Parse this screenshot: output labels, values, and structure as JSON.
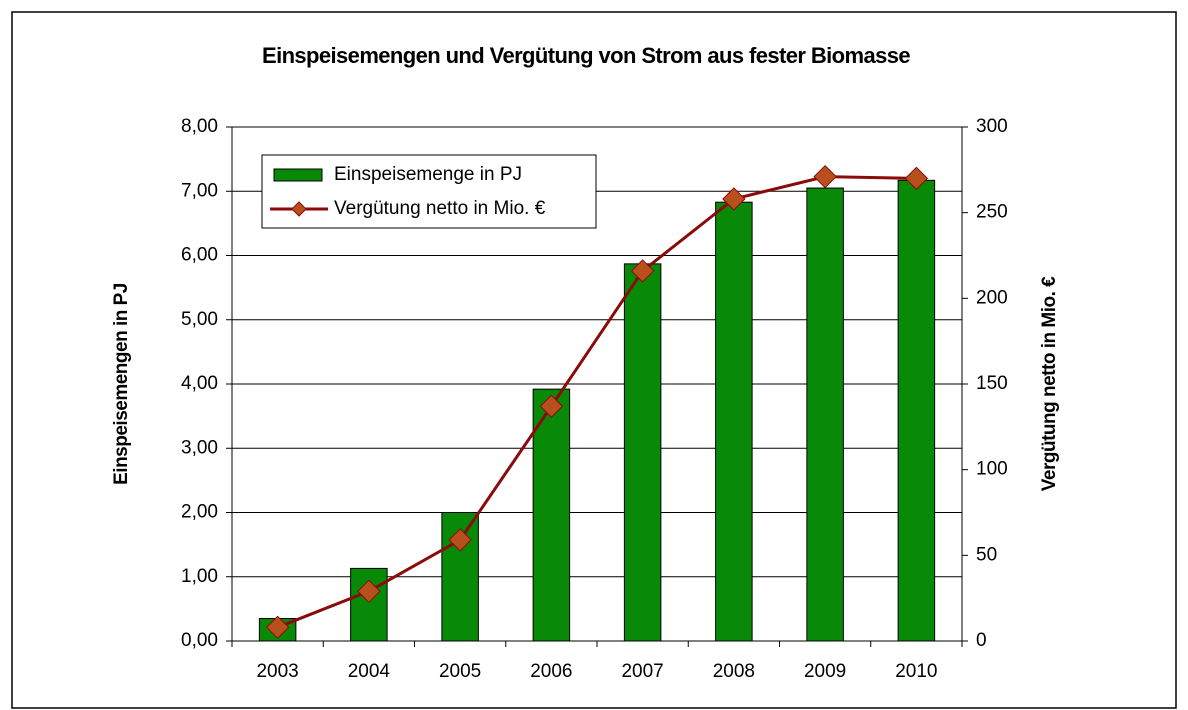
{
  "chart_data": {
    "type": "bar",
    "title": "Einspeisemengen und Vergütung von Strom aus fester Biomasse",
    "y_label": "Einspeisemengen in PJ",
    "y2_label": "Vergütung netto in Mio. €",
    "categories": [
      "2003",
      "2004",
      "2005",
      "2006",
      "2007",
      "2008",
      "2009",
      "2010"
    ],
    "series": [
      {
        "name": "Einspeisemenge in PJ",
        "type": "bar",
        "color": "#088a08",
        "values": [
          0.35,
          1.13,
          2.0,
          3.92,
          5.87,
          6.83,
          7.05,
          7.17
        ]
      },
      {
        "name": "Vergütung netto in Mio. €",
        "type": "line",
        "axis": "y2",
        "color": "#8b0a0a",
        "marker_color": "#b8501e",
        "values": [
          8,
          29,
          59,
          137,
          216,
          258,
          271,
          270
        ]
      }
    ],
    "ylim": [
      0,
      8
    ],
    "yticks": [
      {
        "value": 0,
        "label": "0,00"
      },
      {
        "value": 1,
        "label": "1,00"
      },
      {
        "value": 2,
        "label": "2,00"
      },
      {
        "value": 3,
        "label": "3,00"
      },
      {
        "value": 4,
        "label": "4,00"
      },
      {
        "value": 5,
        "label": "5,00"
      },
      {
        "value": 6,
        "label": "6,00"
      },
      {
        "value": 7,
        "label": "7,00"
      },
      {
        "value": 8,
        "label": "8,00"
      }
    ],
    "y2lim": [
      0,
      300
    ],
    "y2ticks": [
      0,
      50,
      100,
      150,
      200,
      250,
      300
    ],
    "grid": true,
    "legend": "top-left"
  }
}
